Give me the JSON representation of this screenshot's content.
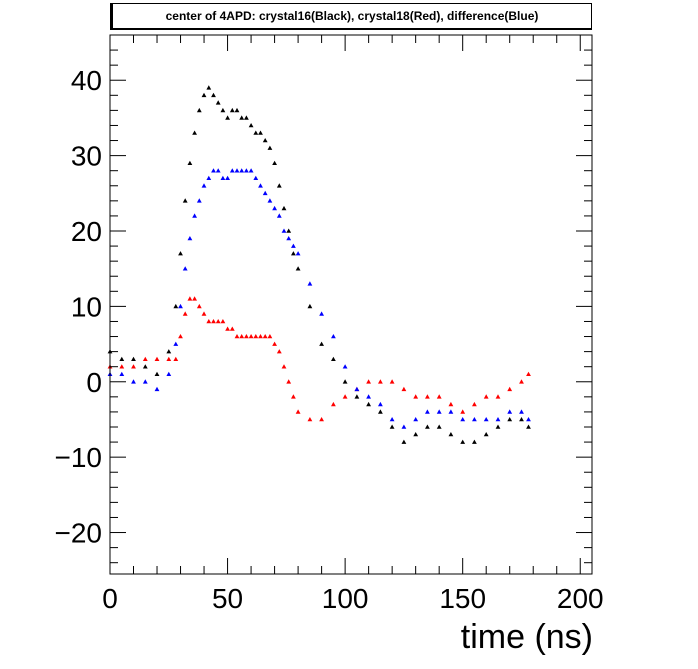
{
  "chart_data": {
    "type": "scatter",
    "title": "center of 4APD: crystal16(Black), crystal18(Red), difference(Blue)",
    "xlabel": "time (ns)",
    "ylabel": "",
    "xlim": [
      0,
      205
    ],
    "ylim": [
      -25.5,
      46
    ],
    "x_ticks": [
      0,
      50,
      100,
      150,
      200
    ],
    "y_ticks": [
      -20,
      -10,
      0,
      10,
      20,
      30,
      40
    ],
    "grid": false,
    "colors": {
      "crystal16": "#000000",
      "crystal18": "#ff0000",
      "difference": "#0000ff"
    },
    "series": [
      {
        "color": "#000000",
        "x": [
          0,
          5,
          10,
          15,
          20,
          25,
          28,
          30,
          32,
          34,
          36,
          38,
          40,
          42,
          44,
          46,
          48,
          50,
          52,
          54,
          56,
          58,
          60,
          62,
          64,
          66,
          68,
          70,
          72,
          74,
          76,
          78,
          80,
          85,
          90,
          95,
          100,
          105,
          110,
          115,
          120,
          125,
          130,
          135,
          140,
          145,
          150,
          155,
          160,
          165,
          170,
          175,
          178
        ],
        "y": [
          4,
          3,
          3,
          2,
          1,
          4,
          10,
          17,
          24,
          29,
          33,
          36,
          38,
          39,
          38,
          37,
          36,
          35,
          36,
          36,
          35,
          35,
          34,
          33,
          33,
          32,
          31,
          29,
          26,
          23,
          20,
          17,
          15,
          10,
          5,
          3,
          0,
          -2,
          -3,
          -4,
          -6,
          -8,
          -7,
          -6,
          -6,
          -7,
          -8,
          -8,
          -7,
          -6,
          -5,
          -5,
          -6
        ]
      },
      {
        "color": "#ff0000",
        "x": [
          0,
          5,
          10,
          15,
          20,
          25,
          28,
          30,
          32,
          34,
          36,
          38,
          40,
          42,
          44,
          46,
          48,
          50,
          52,
          54,
          56,
          58,
          60,
          62,
          64,
          66,
          68,
          70,
          72,
          74,
          76,
          78,
          80,
          85,
          90,
          95,
          100,
          105,
          110,
          115,
          120,
          125,
          130,
          135,
          140,
          145,
          150,
          155,
          160,
          165,
          170,
          175,
          178
        ],
        "y": [
          2,
          2,
          2,
          3,
          3,
          3,
          3,
          6,
          9,
          11,
          11,
          10,
          9,
          8,
          8,
          8,
          8,
          7,
          7,
          6,
          6,
          6,
          6,
          6,
          6,
          6,
          6,
          5,
          4,
          2,
          0,
          -2,
          -4,
          -5,
          -5,
          -3,
          -2,
          -1,
          0,
          0,
          0,
          -1,
          -2,
          -2,
          -2,
          -3,
          -4,
          -3,
          -2,
          -2,
          -1,
          0,
          1
        ]
      },
      {
        "color": "#0000ff",
        "x": [
          0,
          5,
          10,
          15,
          20,
          25,
          28,
          30,
          32,
          34,
          36,
          38,
          40,
          42,
          44,
          46,
          48,
          50,
          52,
          54,
          56,
          58,
          60,
          62,
          64,
          66,
          68,
          70,
          72,
          74,
          76,
          78,
          80,
          85,
          90,
          95,
          100,
          105,
          110,
          115,
          120,
          125,
          130,
          135,
          140,
          145,
          150,
          155,
          160,
          165,
          170,
          175,
          178
        ],
        "y": [
          1,
          1,
          0,
          0,
          -1,
          1,
          5,
          10,
          15,
          19,
          22,
          24,
          26,
          27,
          28,
          28,
          27,
          27,
          28,
          28,
          28,
          28,
          28,
          27,
          26,
          25,
          24,
          23,
          22,
          20,
          19,
          18,
          17,
          13,
          9,
          6,
          2,
          -1,
          -2,
          -3,
          -5,
          -6,
          -5,
          -4,
          -4,
          -4,
          -5,
          -5,
          -5,
          -5,
          -4,
          -4,
          -5
        ]
      }
    ]
  }
}
